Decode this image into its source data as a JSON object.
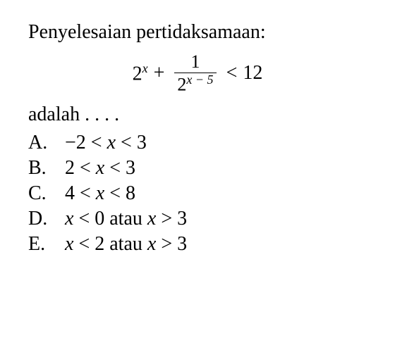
{
  "title": "Penyelesaian pertidaksamaan:",
  "equation": {
    "term1_base": "2",
    "term1_exp": "x",
    "plus": "+",
    "frac_num": "1",
    "frac_den_base": "2",
    "frac_den_exp": "x − 5",
    "lt": "<",
    "rhs": "12"
  },
  "adalah": "adalah . . . .",
  "options": [
    {
      "letter": "A.",
      "text": "−2 < x < 3"
    },
    {
      "letter": "B.",
      "text": "2 < x < 3"
    },
    {
      "letter": "C.",
      "text": "4 < x < 8"
    },
    {
      "letter": "D.",
      "text": "x < 0 atau x > 3"
    },
    {
      "letter": "E.",
      "text": "x < 2 atau x > 3"
    }
  ],
  "colors": {
    "background": "#ffffff",
    "text": "#000000"
  },
  "fonts": {
    "family": "Times New Roman",
    "base_size": 28,
    "sup_size": 18
  }
}
